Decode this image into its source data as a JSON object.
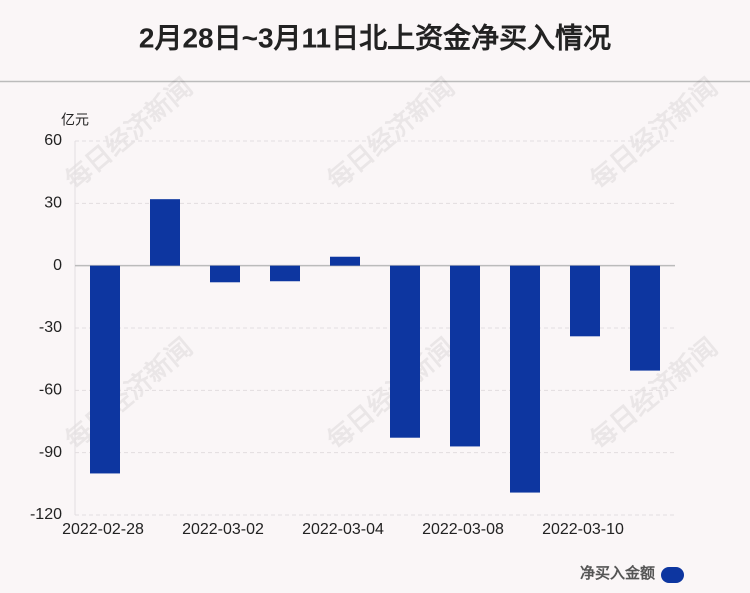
{
  "chart_data": {
    "type": "bar",
    "title": "2月28日~3月11日北上资金净买入情况",
    "y_unit": "亿元",
    "watermark": "每日经济新闻",
    "categories": [
      "2022-02-28",
      null,
      "2022-03-02",
      null,
      "2022-03-04",
      null,
      "2022-03-08",
      null,
      "2022-03-10",
      null
    ],
    "series": [
      {
        "name": "净买入金额",
        "color": "#0d36a0",
        "values": [
          -100,
          32,
          -8,
          -7.5,
          4.3,
          -82.8,
          -87,
          -109.2,
          -34,
          -50.5
        ]
      }
    ],
    "ylim": [
      -120,
      60
    ],
    "yticks": [
      60,
      30,
      0,
      -30,
      -60,
      -90,
      -120
    ],
    "grid": true,
    "legend": "bottom-right"
  }
}
